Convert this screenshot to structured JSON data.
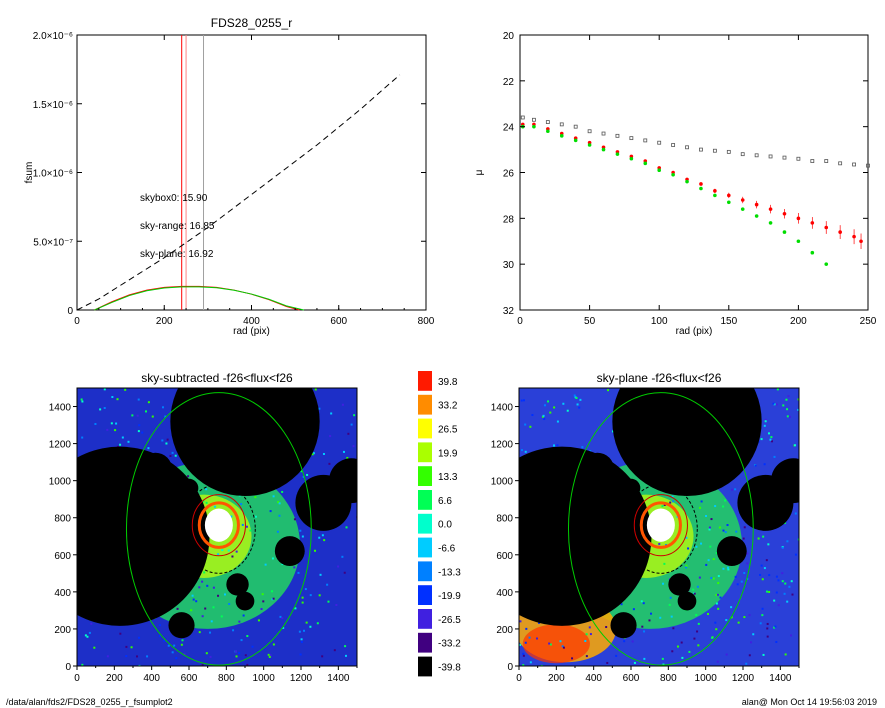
{
  "footer": {
    "path": "/data/alan/fds2/FDS28_0255_r_fsumplot2",
    "stamp": "alan@  Mon Oct 14 19:56:03 2019"
  },
  "chart_data": [
    {
      "id": "fsum",
      "type": "line",
      "title": "FDS28_0255_r",
      "xlabel": "rad (pix)",
      "ylabel": "fsum",
      "xlim": [
        0,
        800
      ],
      "ylim": [
        0,
        2e-06
      ],
      "xticks": [
        "0",
        "200",
        "400",
        "600",
        "800"
      ],
      "yticks": [
        "0",
        "5.0×10⁻⁷",
        "1.0×10⁻⁶",
        "1.5×10⁻⁶",
        "2.0×10⁻⁶"
      ],
      "annotations": [
        {
          "text": "skybox0: 15.90",
          "color": "#000000"
        },
        {
          "text": "sky-range: 16.85",
          "color": "#ff0000"
        },
        {
          "text": "sky-plane: 16.92",
          "color": "#00dd00"
        }
      ],
      "vlines": [
        {
          "x": 240,
          "color": "#ff0000"
        },
        {
          "x": 250,
          "color": "#ff8080"
        },
        {
          "x": 290,
          "color": "#a0a0a0"
        }
      ],
      "series": [
        {
          "style": "dashed",
          "color": "#000000",
          "x": [
            0,
            50,
            100,
            150,
            200,
            250,
            300,
            350,
            400,
            450,
            500,
            550,
            600,
            650,
            700,
            740
          ],
          "y": [
            0,
            8e-08,
            1.8e-07,
            2.8e-07,
            3.8e-07,
            4.9e-07,
            6e-07,
            7.2e-07,
            8.4e-07,
            9.6e-07,
            1.08e-06,
            1.2e-06,
            1.33e-06,
            1.46e-06,
            1.6e-06,
            1.71e-06
          ]
        },
        {
          "style": "solid",
          "color": "#ff0000",
          "x": [
            40,
            80,
            120,
            160,
            200,
            240,
            280,
            320,
            360,
            400,
            440,
            480,
            510
          ],
          "y": [
            0,
            6e-08,
            1.1e-07,
            1.45e-07,
            1.65e-07,
            1.72e-07,
            1.72e-07,
            1.65e-07,
            1.45e-07,
            1.15e-07,
            7.5e-08,
            2.5e-08,
            0
          ]
        },
        {
          "style": "solid",
          "color": "#00cc00",
          "x": [
            40,
            80,
            120,
            160,
            200,
            240,
            280,
            320,
            360,
            400,
            440,
            480,
            520
          ],
          "y": [
            0,
            5.5e-08,
            1.05e-07,
            1.4e-07,
            1.6e-07,
            1.68e-07,
            1.68e-07,
            1.62e-07,
            1.44e-07,
            1.16e-07,
            7.8e-08,
            3e-08,
            0
          ]
        }
      ]
    },
    {
      "id": "profile",
      "type": "scatter",
      "title": "",
      "xlabel": "rad (pix)",
      "ylabel": "μ",
      "xlim": [
        0,
        250
      ],
      "ylim": [
        32,
        20
      ],
      "xticks": [
        "0",
        "50",
        "100",
        "150",
        "200",
        "250"
      ],
      "yticks": [
        "20",
        "22",
        "24",
        "26",
        "28",
        "30",
        "32"
      ],
      "series": [
        {
          "color": "#555555",
          "marker": "open-square",
          "x": [
            2,
            10,
            20,
            30,
            40,
            50,
            60,
            70,
            80,
            90,
            100,
            110,
            120,
            130,
            140,
            150,
            160,
            170,
            180,
            190,
            200,
            210,
            220,
            230,
            240,
            250
          ],
          "y": [
            23.6,
            23.7,
            23.8,
            23.9,
            24.0,
            24.2,
            24.3,
            24.4,
            24.5,
            24.6,
            24.7,
            24.8,
            24.9,
            25.0,
            25.05,
            25.1,
            25.2,
            25.25,
            25.3,
            25.35,
            25.4,
            25.5,
            25.5,
            25.6,
            25.65,
            25.7
          ]
        },
        {
          "color": "#ff0000",
          "marker": "dot-errbar",
          "x": [
            2,
            10,
            20,
            30,
            40,
            50,
            60,
            70,
            80,
            90,
            100,
            110,
            120,
            130,
            140,
            150,
            160,
            170,
            180,
            190,
            200,
            210,
            220,
            230,
            240,
            245
          ],
          "y": [
            23.9,
            23.9,
            24.1,
            24.3,
            24.5,
            24.7,
            24.9,
            25.1,
            25.3,
            25.5,
            25.8,
            26.0,
            26.3,
            26.5,
            26.8,
            27.0,
            27.2,
            27.4,
            27.6,
            27.8,
            28.0,
            28.2,
            28.4,
            28.6,
            28.8,
            29.0
          ]
        },
        {
          "color": "#00dd00",
          "marker": "dot",
          "x": [
            2,
            10,
            20,
            30,
            40,
            50,
            60,
            70,
            80,
            90,
            100,
            110,
            120,
            130,
            140,
            150,
            160,
            170,
            180,
            190,
            200,
            210,
            220
          ],
          "y": [
            24.0,
            24.0,
            24.2,
            24.4,
            24.6,
            24.8,
            25.0,
            25.2,
            25.4,
            25.6,
            25.9,
            26.1,
            26.4,
            26.7,
            27.0,
            27.3,
            27.6,
            27.9,
            28.2,
            28.6,
            29.0,
            29.5,
            30.0
          ]
        }
      ]
    },
    {
      "id": "sky-subtracted",
      "type": "heatmap",
      "title": "sky-subtracted -f26<flux<f26",
      "xlim": [
        0,
        1500
      ],
      "ylim": [
        0,
        1500
      ],
      "xticks": [
        "0",
        "100",
        "200",
        "300",
        "400",
        "500",
        "600",
        "700",
        "800",
        "900",
        "1000",
        "1100",
        "1200",
        "1300",
        "1400",
        "1500"
      ],
      "yticks": [
        "0",
        "200",
        "400",
        "600",
        "800",
        "1000",
        "1200",
        "1400"
      ]
    },
    {
      "id": "sky-plane",
      "type": "heatmap",
      "title": "sky-plane -f26<flux<f26",
      "xlim": [
        0,
        1500
      ],
      "ylim": [
        0,
        1500
      ],
      "xticks": [
        "0",
        "100",
        "200",
        "300",
        "400",
        "500",
        "600",
        "700",
        "800",
        "900",
        "1000",
        "1100",
        "1200",
        "1300",
        "1400",
        "1500"
      ],
      "yticks": [
        "0",
        "200",
        "400",
        "600",
        "800",
        "1000",
        "1200",
        "1400"
      ]
    },
    {
      "id": "colorbar",
      "type": "table",
      "levels": [
        "39.8",
        "33.2",
        "26.5",
        "19.9",
        "13.3",
        "6.6",
        "0.0",
        "-6.6",
        "-13.3",
        "-19.9",
        "-26.5",
        "-33.2",
        "-39.8"
      ],
      "colors": [
        "#ff1a00",
        "#ff8c00",
        "#ffff00",
        "#aaff00",
        "#33ff00",
        "#00ff55",
        "#00ffcc",
        "#00ccff",
        "#0080ff",
        "#0030ff",
        "#4020e0",
        "#400080",
        "#000000"
      ]
    }
  ]
}
